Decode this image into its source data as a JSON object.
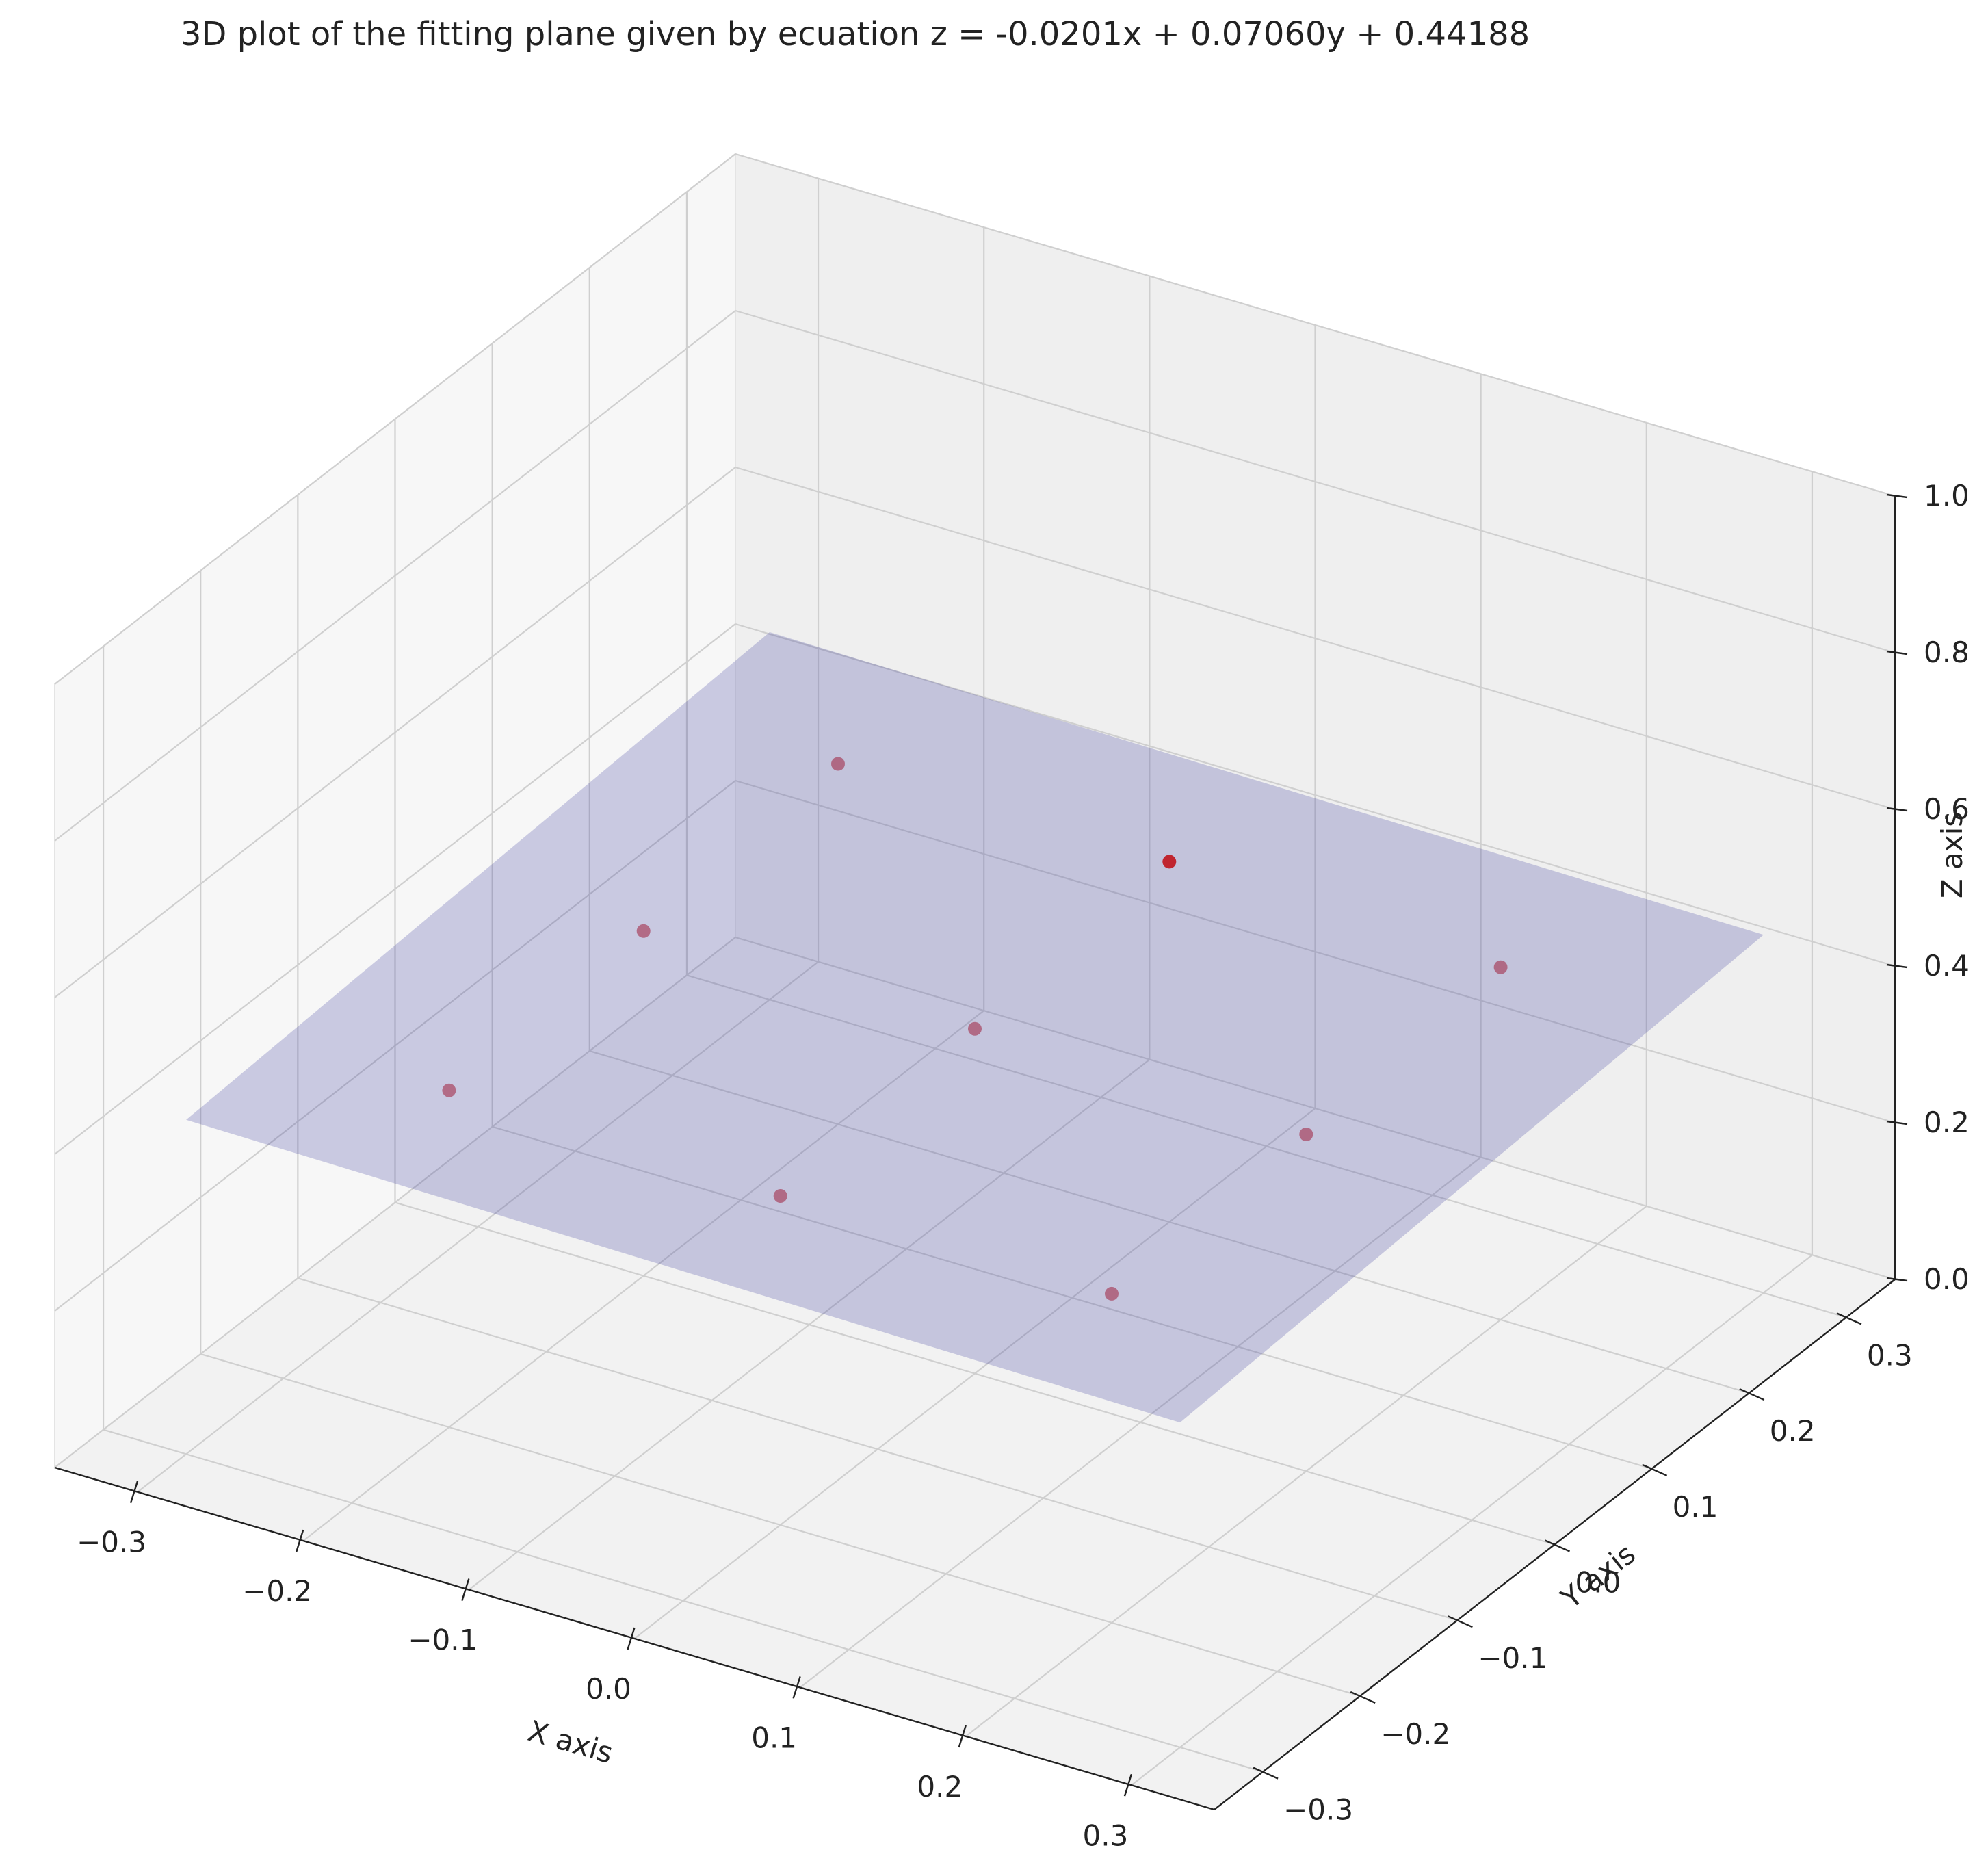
{
  "chart_data": {
    "type": "scatter",
    "projection": "3d",
    "title": "3D plot of the fitting plane given by ecuation z = -0.0201x + 0.07060y + 0.44188",
    "xlabel": "X axis",
    "ylabel": "Y axis",
    "zlabel": "Z axis",
    "xlim": [
      -0.35,
      0.35
    ],
    "ylim": [
      -0.35,
      0.35
    ],
    "zlim": [
      0,
      1
    ],
    "x_ticks": [
      "-0.3",
      "-0.2",
      "-0.1",
      "0.0",
      "0.1",
      "0.2",
      "0.3"
    ],
    "y_ticks": [
      "-0.3",
      "-0.2",
      "-0.1",
      "0.0",
      "0.1",
      "0.2",
      "0.3"
    ],
    "z_ticks": [
      "0.0",
      "0.2",
      "0.4",
      "0.6",
      "0.8",
      "1.0"
    ],
    "grid": true,
    "plane": {
      "a": -0.0201,
      "b": 0.0706,
      "c": 0.44188,
      "color": "#3f3fa0",
      "opacity": 0.25
    },
    "points": {
      "color": "#c0141c",
      "x": [
        -0.2,
        0.0,
        0.2,
        -0.2,
        0.0,
        0.2,
        -0.2,
        0.0,
        0.2
      ],
      "y": [
        -0.2,
        -0.2,
        -0.2,
        0.0,
        0.0,
        0.0,
        0.2,
        0.2,
        0.2
      ],
      "z": [
        0.43,
        0.42,
        0.42,
        0.44,
        0.44,
        0.43,
        0.46,
        0.46,
        0.45
      ]
    }
  }
}
